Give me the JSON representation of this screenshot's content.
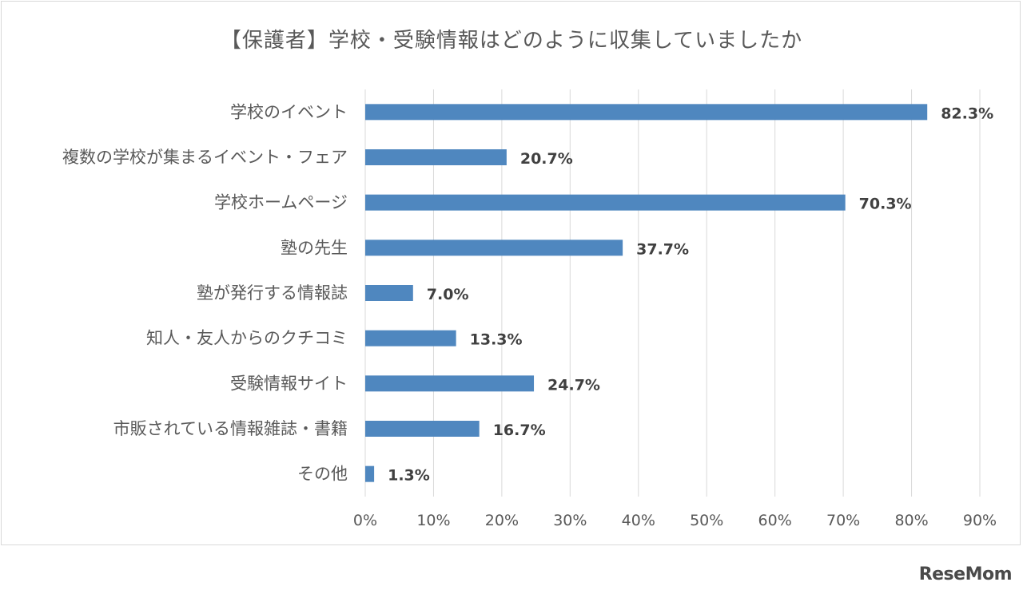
{
  "chart_data": {
    "type": "bar",
    "orientation": "horizontal",
    "title": "【保護者】学校・受験情報はどのように収集していましたか",
    "categories": [
      "学校のイベント",
      "複数の学校が集まるイベント・フェア",
      "学校ホームページ",
      "塾の先生",
      "塾が発行する情報誌",
      "知人・友人からのクチコミ",
      "受験情報サイト",
      "市販されている情報雑誌・書籍",
      "その他"
    ],
    "values": [
      82.3,
      20.7,
      70.3,
      37.7,
      7.0,
      13.3,
      24.7,
      16.7,
      1.3
    ],
    "data_labels": [
      "82.3%",
      "20.7%",
      "70.3%",
      "37.7%",
      "7.0%",
      "13.3%",
      "24.7%",
      "16.7%",
      "1.3%"
    ],
    "xlim": [
      0,
      90
    ],
    "xticks": [
      0,
      10,
      20,
      30,
      40,
      50,
      60,
      70,
      80,
      90
    ],
    "xtick_labels": [
      "0%",
      "10%",
      "20%",
      "30%",
      "40%",
      "50%",
      "60%",
      "70%",
      "80%",
      "90%"
    ],
    "grid": "vertical",
    "legend": "none",
    "colors": {
      "bar": "#4f87bf",
      "grid": "#d9d9d9",
      "text": "#595959"
    }
  },
  "watermark": "ReseMom"
}
